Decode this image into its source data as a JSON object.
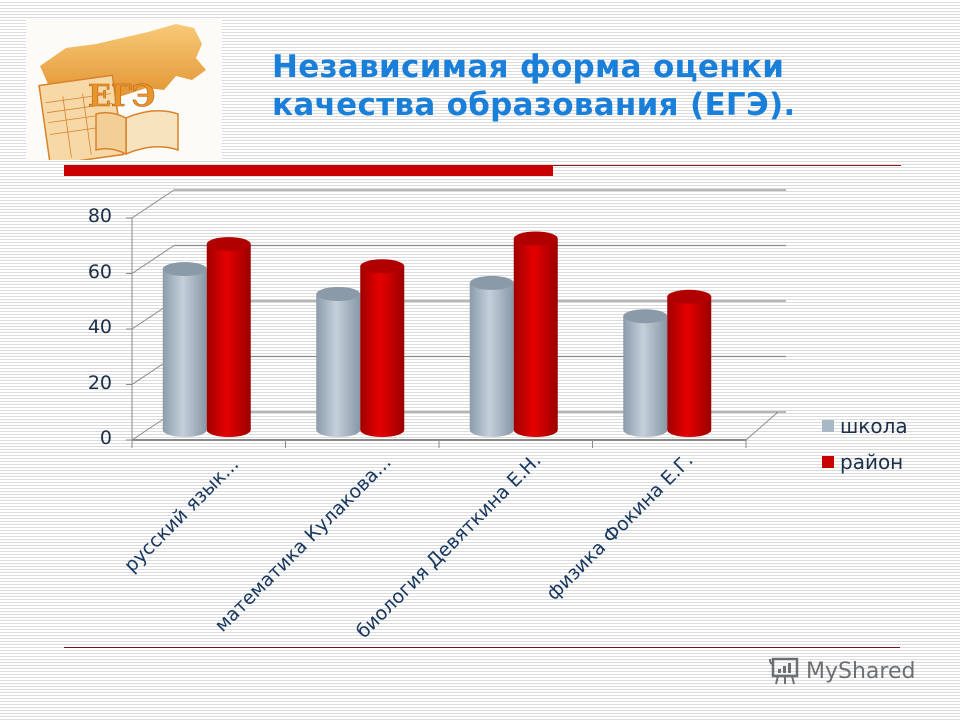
{
  "slide": {
    "title_line1": "Независимая форма оценки",
    "title_line2": "качества образования (ЕГЭ).",
    "logo_text": "ЕГЭ",
    "watermark": "MyShared"
  },
  "colors": {
    "title": "#1a7fd9",
    "accent_red": "#c80000",
    "school": "#a9b8c6",
    "district": "#d40000"
  },
  "chart_data": {
    "type": "bar",
    "style": "3d-cylinder",
    "title": "",
    "xlabel": "",
    "ylabel": "",
    "ylim": [
      0,
      80
    ],
    "yticks": [
      "0",
      "20",
      "40",
      "60",
      "80"
    ],
    "grid": true,
    "legend_position": "right",
    "categories": [
      "русский язык...",
      "математика  Кулакова...",
      "биология Девяткина Е.Н.",
      "физика Фокина Е.Г."
    ],
    "series": [
      {
        "name": "школа",
        "color": "#a9b8c6",
        "values": [
          58,
          49,
          53,
          41
        ]
      },
      {
        "name": "район",
        "color": "#d40000",
        "values": [
          67,
          59,
          69,
          48
        ]
      }
    ]
  }
}
